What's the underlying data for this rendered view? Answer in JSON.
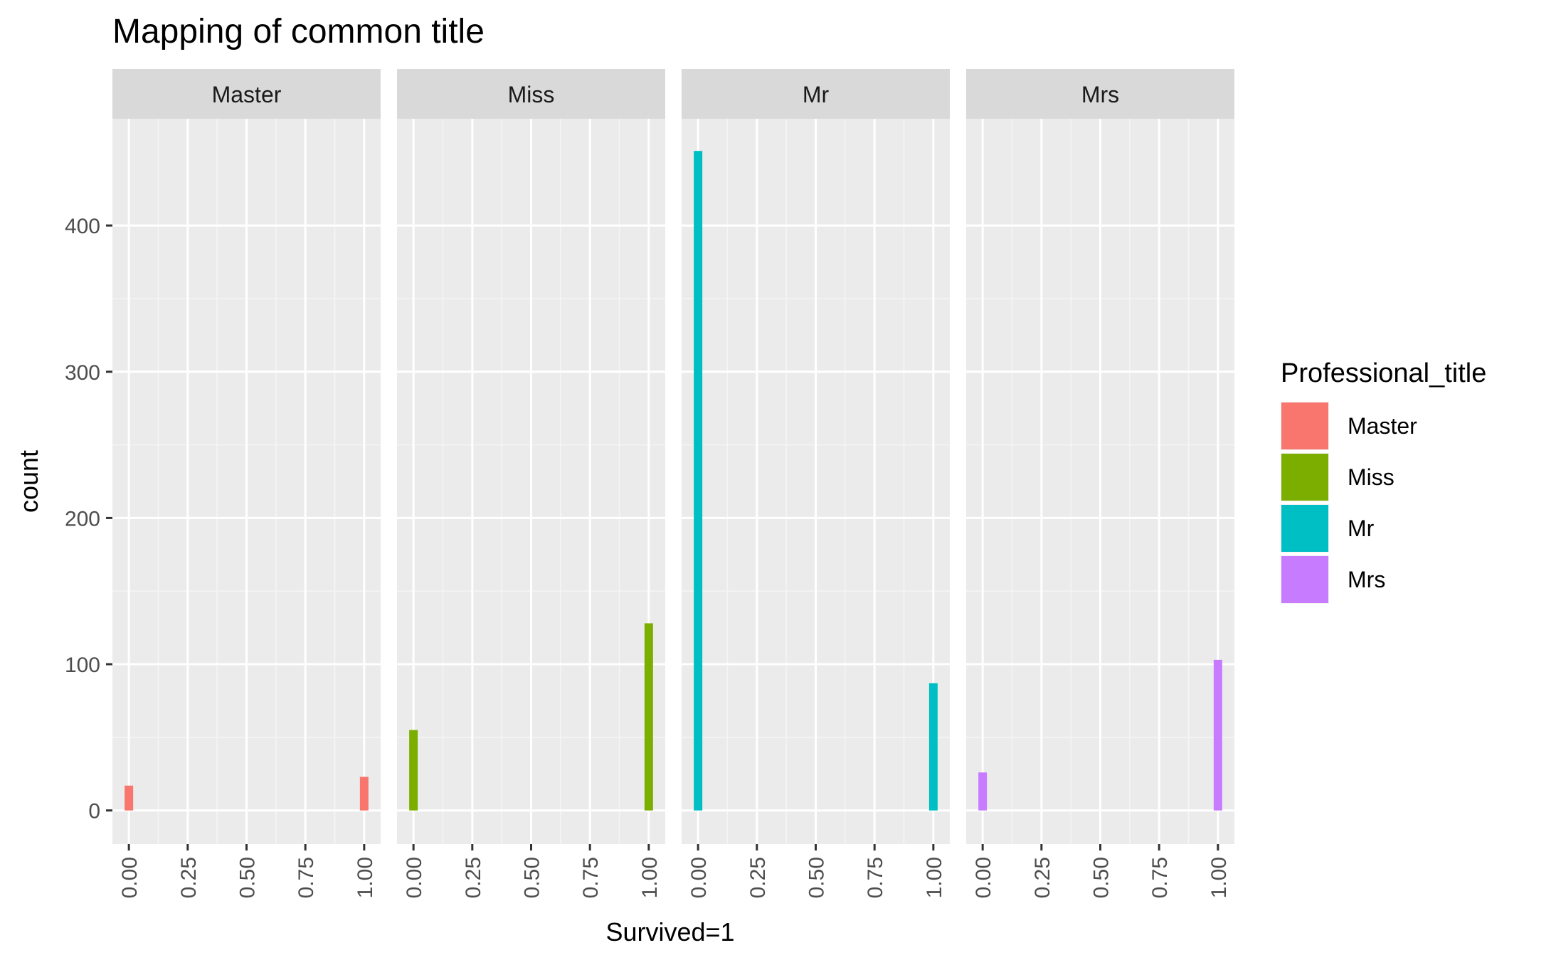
{
  "chart_data": {
    "type": "bar",
    "title": "Mapping of common title",
    "xlabel": "Survived=1",
    "ylabel": "count",
    "x_ticks": [
      "0.00",
      "0.25",
      "0.50",
      "0.75",
      "1.00"
    ],
    "x_tick_values": [
      0,
      0.25,
      0.5,
      0.75,
      1
    ],
    "xlim": [
      -0.07,
      1.07
    ],
    "y_ticks": [
      0,
      100,
      200,
      300,
      400
    ],
    "ylim": [
      -23,
      473
    ],
    "grid": true,
    "legend": {
      "title": "Professional_title",
      "position": "right",
      "entries": [
        "Master",
        "Miss",
        "Mr",
        "Mrs"
      ]
    },
    "facets": [
      {
        "label": "Master",
        "color": "#F8766D",
        "x": [
          0,
          1
        ],
        "values": [
          17,
          23
        ]
      },
      {
        "label": "Miss",
        "color": "#7CAE00",
        "x": [
          0,
          1
        ],
        "values": [
          55,
          128
        ]
      },
      {
        "label": "Mr",
        "color": "#00BFC4",
        "x": [
          0,
          1
        ],
        "values": [
          451,
          87
        ]
      },
      {
        "label": "Mrs",
        "color": "#C77CFF",
        "x": [
          0,
          1
        ],
        "values": [
          26,
          103
        ]
      }
    ]
  }
}
